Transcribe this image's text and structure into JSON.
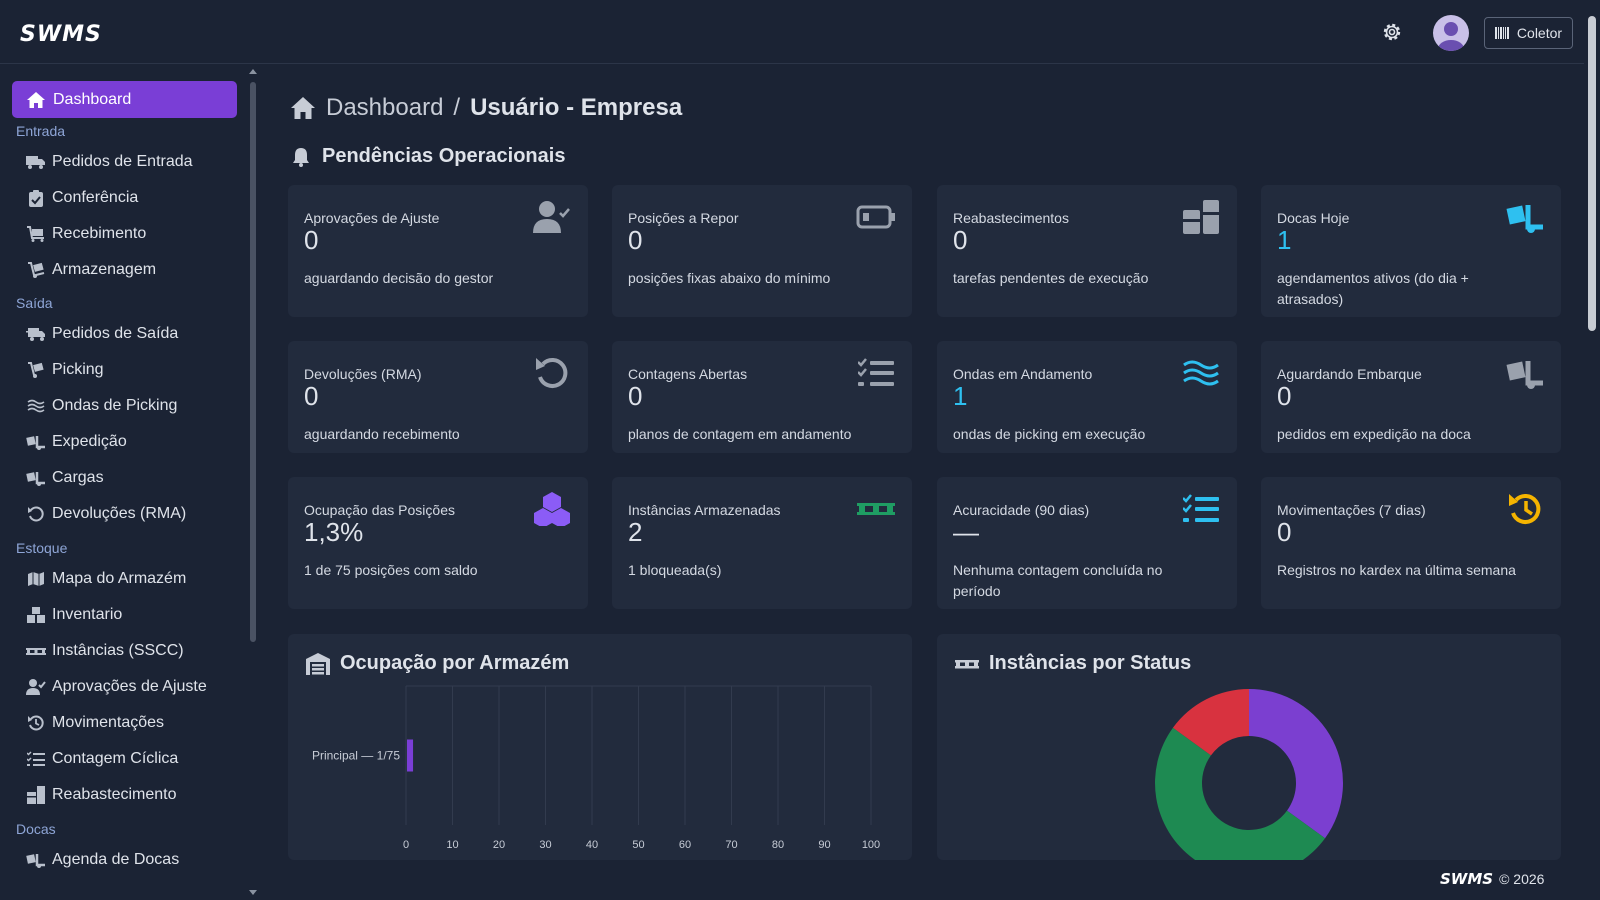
{
  "header": {
    "logo": "SWMS",
    "settings_icon": "gear-icon",
    "avatar_icon": "user-avatar-icon",
    "collector_label": "Coletor"
  },
  "sidebar": {
    "active": {
      "label": "Dashboard",
      "icon": "home-icon"
    },
    "sections": [
      {
        "label": "Entrada",
        "items": [
          {
            "label": "Pedidos de Entrada",
            "icon": "truck-icon"
          },
          {
            "label": "Conferência",
            "icon": "clipboard-check-icon"
          },
          {
            "label": "Recebimento",
            "icon": "dolly-icon"
          },
          {
            "label": "Armazenagem",
            "icon": "hand-truck-icon"
          }
        ]
      },
      {
        "label": "Saída",
        "items": [
          {
            "label": "Pedidos de Saída",
            "icon": "truck-fast-icon"
          },
          {
            "label": "Picking",
            "icon": "dolly-flatbed-icon"
          },
          {
            "label": "Ondas de Picking",
            "icon": "water-icon"
          },
          {
            "label": "Expedição",
            "icon": "truck-loading-icon"
          },
          {
            "label": "Cargas",
            "icon": "truck-ramp-icon"
          },
          {
            "label": "Devoluções (RMA)",
            "icon": "undo-icon"
          }
        ]
      },
      {
        "label": "Estoque",
        "items": [
          {
            "label": "Mapa do Armazém",
            "icon": "map-icon"
          },
          {
            "label": "Inventario",
            "icon": "boxes-icon"
          },
          {
            "label": "Instâncias (SSCC)",
            "icon": "pallet-icon"
          },
          {
            "label": "Aprovações de Ajuste",
            "icon": "user-check-icon"
          },
          {
            "label": "Movimentações",
            "icon": "history-icon"
          },
          {
            "label": "Contagem Cíclica",
            "icon": "list-check-icon"
          },
          {
            "label": "Reabastecimento",
            "icon": "dolly-boxes-icon"
          }
        ]
      },
      {
        "label": "Docas",
        "items": [
          {
            "label": "Agenda de Docas",
            "icon": "truck-ramp-box-icon"
          }
        ]
      }
    ]
  },
  "breadcrumb": {
    "home_icon": "home-icon",
    "root": "Dashboard",
    "separator": "/",
    "current": "Usuário - Empresa"
  },
  "pendencias": {
    "title": "Pendências Operacionais",
    "icon": "bell-icon",
    "cards": [
      {
        "title": "Aprovações de Ajuste",
        "value": "0",
        "desc": "aguardando decisão do gestor",
        "icon": "user-check-icon",
        "color": "#9aa1ad",
        "accent": false
      },
      {
        "title": "Posições a Repor",
        "value": "0",
        "desc": "posições fixas abaixo do mínimo",
        "icon": "battery-empty-icon",
        "color": "#9aa1ad",
        "accent": false
      },
      {
        "title": "Reabastecimentos",
        "value": "0",
        "desc": "tarefas pendentes de execução",
        "icon": "dolly-boxes-icon",
        "color": "#9aa1ad",
        "accent": false
      },
      {
        "title": "Docas Hoje",
        "value": "1",
        "desc": "agendamentos ativos (do dia + atrasados)",
        "icon": "truck-ramp-box-icon",
        "color": "#2ec0f0",
        "accent": true
      },
      {
        "title": "Devoluções (RMA)",
        "value": "0",
        "desc": "aguardando recebimento",
        "icon": "undo-icon",
        "color": "#9aa1ad",
        "accent": false
      },
      {
        "title": "Contagens Abertas",
        "value": "0",
        "desc": "planos de contagem em andamento",
        "icon": "list-check-icon",
        "color": "#9aa1ad",
        "accent": false
      },
      {
        "title": "Ondas em Andamento",
        "value": "1",
        "desc": "ondas de picking em execução",
        "icon": "water-icon",
        "color": "#2ec0f0",
        "accent": true
      },
      {
        "title": "Aguardando Embarque",
        "value": "0",
        "desc": "pedidos em expedição na doca",
        "icon": "truck-ramp-box-icon",
        "color": "#9aa1ad",
        "accent": false
      },
      {
        "title": "Ocupação das Posições",
        "value": "1,3%",
        "desc": "1 de 75 posições com saldo",
        "icon": "cubes-icon",
        "color": "#8b5cf6",
        "accent": false
      },
      {
        "title": "Instâncias Armazenadas",
        "value": "2",
        "desc": "1 bloqueada(s)",
        "icon": "pallet-icon",
        "color": "#1f9d63",
        "accent": false
      },
      {
        "title": "Acuracidade (90 dias)",
        "value": "—",
        "desc": "Nenhuma contagem concluída no período",
        "icon": "list-check-icon",
        "color": "#2ec0f0",
        "accent": false
      },
      {
        "title": "Movimentações (7 dias)",
        "value": "0",
        "desc": "Registros no kardex na última semana",
        "icon": "history-icon",
        "color": "#f5b400",
        "accent": false
      }
    ]
  },
  "ocupacao_panel": {
    "title": "Ocupação por Armazém",
    "icon": "warehouse-icon"
  },
  "instancias_panel": {
    "title": "Instâncias por Status",
    "icon": "pallet-icon"
  },
  "chart_data": [
    {
      "type": "bar",
      "orientation": "horizontal",
      "categories": [
        "Principal — 1/75"
      ],
      "values": [
        1.3
      ],
      "xlim": [
        0,
        100
      ],
      "xticks": [
        0,
        10,
        20,
        30,
        40,
        50,
        60,
        70,
        80,
        90,
        100
      ],
      "color": "#7a3ed6",
      "grid": true
    },
    {
      "type": "pie",
      "donut": true,
      "slices": [
        {
          "value": 35,
          "color": "#7b3fd0"
        },
        {
          "value": 50,
          "color": "#1e8a52"
        },
        {
          "value": 15,
          "color": "#d8323f"
        }
      ]
    }
  ],
  "footer": {
    "logo": "SWMS",
    "copyright": "© 2026"
  }
}
